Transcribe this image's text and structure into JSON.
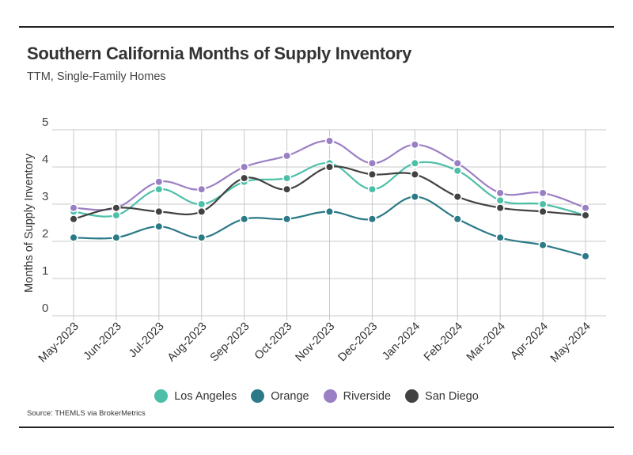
{
  "header": {
    "title": "Southern California Months of Supply Inventory",
    "subtitle": "TTM, Single-Family Homes"
  },
  "footer": {
    "source": "Source:  THEMLS via BrokerMetrics"
  },
  "chart_data": {
    "type": "line",
    "title": "Southern California Months of Supply Inventory",
    "subtitle": "TTM, Single-Family Homes",
    "xlabel": "",
    "ylabel": "Months of Supply Inventory",
    "ylim": [
      0,
      5
    ],
    "yticks": [
      0,
      1,
      2,
      3,
      4,
      5
    ],
    "grid": true,
    "legend": "bottom-center",
    "categories": [
      "May-2023",
      "Jun-2023",
      "Jul-2023",
      "Aug-2023",
      "Sep-2023",
      "Oct-2023",
      "Nov-2023",
      "Dec-2023",
      "Jan-2024",
      "Feb-2024",
      "Mar-2024",
      "Apr-2024",
      "May-2024"
    ],
    "series": [
      {
        "name": "Los Angeles",
        "color": "#4dbfa8",
        "values": [
          2.8,
          2.7,
          3.4,
          3.0,
          3.6,
          3.7,
          4.1,
          3.4,
          4.1,
          3.9,
          3.1,
          3.0,
          2.7
        ]
      },
      {
        "name": "Orange",
        "color": "#2b7a87",
        "values": [
          2.1,
          2.1,
          2.4,
          2.1,
          2.6,
          2.6,
          2.8,
          2.6,
          3.2,
          2.6,
          2.1,
          1.9,
          1.6
        ]
      },
      {
        "name": "Riverside",
        "color": "#9b7fc4",
        "values": [
          2.9,
          2.9,
          3.6,
          3.4,
          4.0,
          4.3,
          4.7,
          4.1,
          4.6,
          4.1,
          3.3,
          3.3,
          2.9
        ]
      },
      {
        "name": "San Diego",
        "color": "#424242",
        "values": [
          2.6,
          2.9,
          2.8,
          2.8,
          3.7,
          3.4,
          4.0,
          3.8,
          3.8,
          3.2,
          2.9,
          2.8,
          2.7
        ]
      }
    ]
  }
}
